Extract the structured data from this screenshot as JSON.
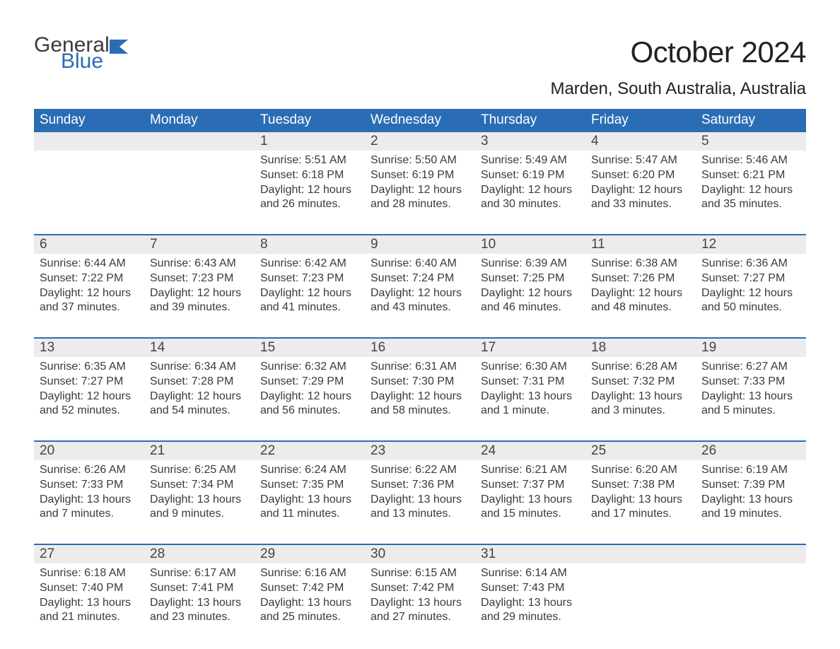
{
  "brand": {
    "word1": "General",
    "word2": "Blue",
    "word1_color": "#3a3a3a",
    "word2_color": "#2a6db5",
    "flag_color": "#2a6db5"
  },
  "title": "October 2024",
  "location": "Marden, South Australia, Australia",
  "colors": {
    "header_bg": "#2a6db5",
    "header_text": "#ffffff",
    "daynum_bg": "#ececec",
    "body_text": "#3a3a3a",
    "week_border": "#2a6db5",
    "page_bg": "#ffffff"
  },
  "weekdays": [
    "Sunday",
    "Monday",
    "Tuesday",
    "Wednesday",
    "Thursday",
    "Friday",
    "Saturday"
  ],
  "weeks": [
    [
      null,
      null,
      {
        "n": "1",
        "sunrise": "5:51 AM",
        "sunset": "6:18 PM",
        "daylight": "12 hours and 26 minutes."
      },
      {
        "n": "2",
        "sunrise": "5:50 AM",
        "sunset": "6:19 PM",
        "daylight": "12 hours and 28 minutes."
      },
      {
        "n": "3",
        "sunrise": "5:49 AM",
        "sunset": "6:19 PM",
        "daylight": "12 hours and 30 minutes."
      },
      {
        "n": "4",
        "sunrise": "5:47 AM",
        "sunset": "6:20 PM",
        "daylight": "12 hours and 33 minutes."
      },
      {
        "n": "5",
        "sunrise": "5:46 AM",
        "sunset": "6:21 PM",
        "daylight": "12 hours and 35 minutes."
      }
    ],
    [
      {
        "n": "6",
        "sunrise": "6:44 AM",
        "sunset": "7:22 PM",
        "daylight": "12 hours and 37 minutes."
      },
      {
        "n": "7",
        "sunrise": "6:43 AM",
        "sunset": "7:23 PM",
        "daylight": "12 hours and 39 minutes."
      },
      {
        "n": "8",
        "sunrise": "6:42 AM",
        "sunset": "7:23 PM",
        "daylight": "12 hours and 41 minutes."
      },
      {
        "n": "9",
        "sunrise": "6:40 AM",
        "sunset": "7:24 PM",
        "daylight": "12 hours and 43 minutes."
      },
      {
        "n": "10",
        "sunrise": "6:39 AM",
        "sunset": "7:25 PM",
        "daylight": "12 hours and 46 minutes."
      },
      {
        "n": "11",
        "sunrise": "6:38 AM",
        "sunset": "7:26 PM",
        "daylight": "12 hours and 48 minutes."
      },
      {
        "n": "12",
        "sunrise": "6:36 AM",
        "sunset": "7:27 PM",
        "daylight": "12 hours and 50 minutes."
      }
    ],
    [
      {
        "n": "13",
        "sunrise": "6:35 AM",
        "sunset": "7:27 PM",
        "daylight": "12 hours and 52 minutes."
      },
      {
        "n": "14",
        "sunrise": "6:34 AM",
        "sunset": "7:28 PM",
        "daylight": "12 hours and 54 minutes."
      },
      {
        "n": "15",
        "sunrise": "6:32 AM",
        "sunset": "7:29 PM",
        "daylight": "12 hours and 56 minutes."
      },
      {
        "n": "16",
        "sunrise": "6:31 AM",
        "sunset": "7:30 PM",
        "daylight": "12 hours and 58 minutes."
      },
      {
        "n": "17",
        "sunrise": "6:30 AM",
        "sunset": "7:31 PM",
        "daylight": "13 hours and 1 minute."
      },
      {
        "n": "18",
        "sunrise": "6:28 AM",
        "sunset": "7:32 PM",
        "daylight": "13 hours and 3 minutes."
      },
      {
        "n": "19",
        "sunrise": "6:27 AM",
        "sunset": "7:33 PM",
        "daylight": "13 hours and 5 minutes."
      }
    ],
    [
      {
        "n": "20",
        "sunrise": "6:26 AM",
        "sunset": "7:33 PM",
        "daylight": "13 hours and 7 minutes."
      },
      {
        "n": "21",
        "sunrise": "6:25 AM",
        "sunset": "7:34 PM",
        "daylight": "13 hours and 9 minutes."
      },
      {
        "n": "22",
        "sunrise": "6:24 AM",
        "sunset": "7:35 PM",
        "daylight": "13 hours and 11 minutes."
      },
      {
        "n": "23",
        "sunrise": "6:22 AM",
        "sunset": "7:36 PM",
        "daylight": "13 hours and 13 minutes."
      },
      {
        "n": "24",
        "sunrise": "6:21 AM",
        "sunset": "7:37 PM",
        "daylight": "13 hours and 15 minutes."
      },
      {
        "n": "25",
        "sunrise": "6:20 AM",
        "sunset": "7:38 PM",
        "daylight": "13 hours and 17 minutes."
      },
      {
        "n": "26",
        "sunrise": "6:19 AM",
        "sunset": "7:39 PM",
        "daylight": "13 hours and 19 minutes."
      }
    ],
    [
      {
        "n": "27",
        "sunrise": "6:18 AM",
        "sunset": "7:40 PM",
        "daylight": "13 hours and 21 minutes."
      },
      {
        "n": "28",
        "sunrise": "6:17 AM",
        "sunset": "7:41 PM",
        "daylight": "13 hours and 23 minutes."
      },
      {
        "n": "29",
        "sunrise": "6:16 AM",
        "sunset": "7:42 PM",
        "daylight": "13 hours and 25 minutes."
      },
      {
        "n": "30",
        "sunrise": "6:15 AM",
        "sunset": "7:42 PM",
        "daylight": "13 hours and 27 minutes."
      },
      {
        "n": "31",
        "sunrise": "6:14 AM",
        "sunset": "7:43 PM",
        "daylight": "13 hours and 29 minutes."
      },
      null,
      null
    ]
  ],
  "labels": {
    "sunrise": "Sunrise: ",
    "sunset": "Sunset: ",
    "daylight": "Daylight: "
  }
}
